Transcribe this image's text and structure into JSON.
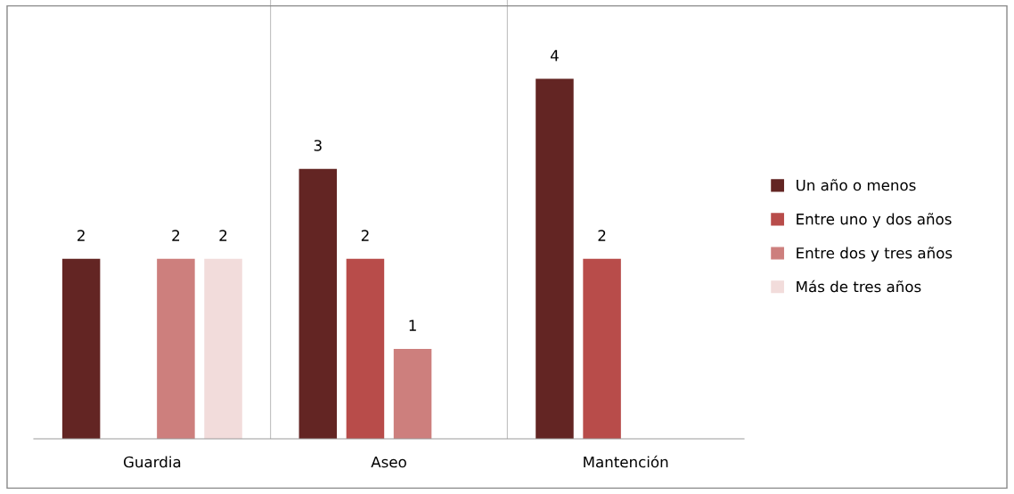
{
  "chart_data": {
    "type": "bar",
    "categories": [
      "Guardia",
      "Aseo",
      "Mantención"
    ],
    "series": [
      {
        "name": "Un año o menos",
        "color": "#632523",
        "values": [
          2,
          3,
          4
        ]
      },
      {
        "name": "Entre uno y dos años",
        "color": "#b84c4a",
        "values": [
          null,
          2,
          2
        ]
      },
      {
        "name": "Entre dos y tres años",
        "color": "#cd7f7d",
        "values": [
          2,
          1,
          null
        ]
      },
      {
        "name": "Más de tres años",
        "color": "#f2dcdb",
        "values": [
          2,
          null,
          null
        ]
      }
    ],
    "data_labels": true,
    "legend": "right",
    "grid": false,
    "tick_labels": "x"
  }
}
